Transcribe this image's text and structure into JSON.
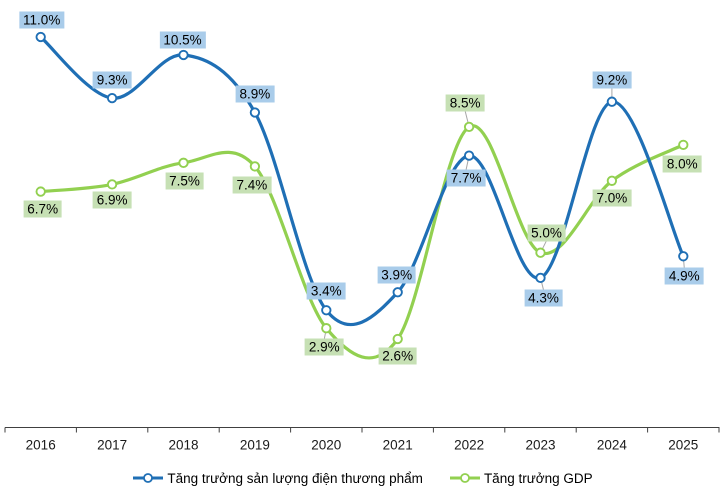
{
  "chart_data": {
    "type": "line",
    "title": "",
    "categories": [
      "2016",
      "2017",
      "2018",
      "2019",
      "2020",
      "2021",
      "2022",
      "2023",
      "2024",
      "2025"
    ],
    "series": [
      {
        "name": "Tăng trưởng sản lượng điện thương phẩm",
        "color": "#1F6FB5",
        "label_bg": "#A9CCEA",
        "values": [
          11.0,
          9.3,
          10.5,
          8.9,
          3.4,
          3.9,
          7.7,
          4.3,
          9.2,
          4.9
        ],
        "labels": [
          "11.0%",
          "9.3%",
          "10.5%",
          "8.9%",
          "3.4%",
          "3.9%",
          "7.7%",
          "4.3%",
          "9.2%",
          "4.9%"
        ],
        "label_offsets": [
          [
            1,
            -17
          ],
          [
            0,
            -18
          ],
          [
            -1,
            -15
          ],
          [
            0,
            -18
          ],
          [
            0,
            -19
          ],
          [
            -1,
            -17
          ],
          [
            -3,
            22
          ],
          [
            3,
            20
          ],
          [
            0,
            -22
          ],
          [
            1,
            20
          ]
        ],
        "leaders": [
          false,
          false,
          false,
          false,
          false,
          false,
          true,
          true,
          true,
          true
        ]
      },
      {
        "name": "Tăng trưởng GDP",
        "color": "#92D050",
        "label_bg": "#C6E0B4",
        "values": [
          6.7,
          6.9,
          7.5,
          7.4,
          2.9,
          2.6,
          8.5,
          5.0,
          7.0,
          8.0
        ],
        "labels": [
          "6.7%",
          "6.9%",
          "7.5%",
          "7.4%",
          "2.9%",
          "2.6%",
          "8.5%",
          "5.0%",
          "7.0%",
          "8.0%"
        ],
        "label_offsets": [
          [
            2,
            17
          ],
          [
            0,
            16
          ],
          [
            1,
            18
          ],
          [
            -3,
            19
          ],
          [
            -2,
            19
          ],
          [
            0,
            17
          ],
          [
            -4,
            -24
          ],
          [
            6,
            -20
          ],
          [
            0,
            17
          ],
          [
            -1,
            19
          ]
        ],
        "leaders": [
          false,
          false,
          false,
          false,
          true,
          false,
          true,
          true,
          false,
          false
        ]
      }
    ],
    "xlabel": "",
    "ylabel": "",
    "value_format": "percent",
    "grid": false,
    "y_axis_visible": false,
    "legend_position": "bottom",
    "axis_color": "#404040",
    "leader_line_color": "#A6A6A6",
    "marker_style": "open-circle"
  }
}
